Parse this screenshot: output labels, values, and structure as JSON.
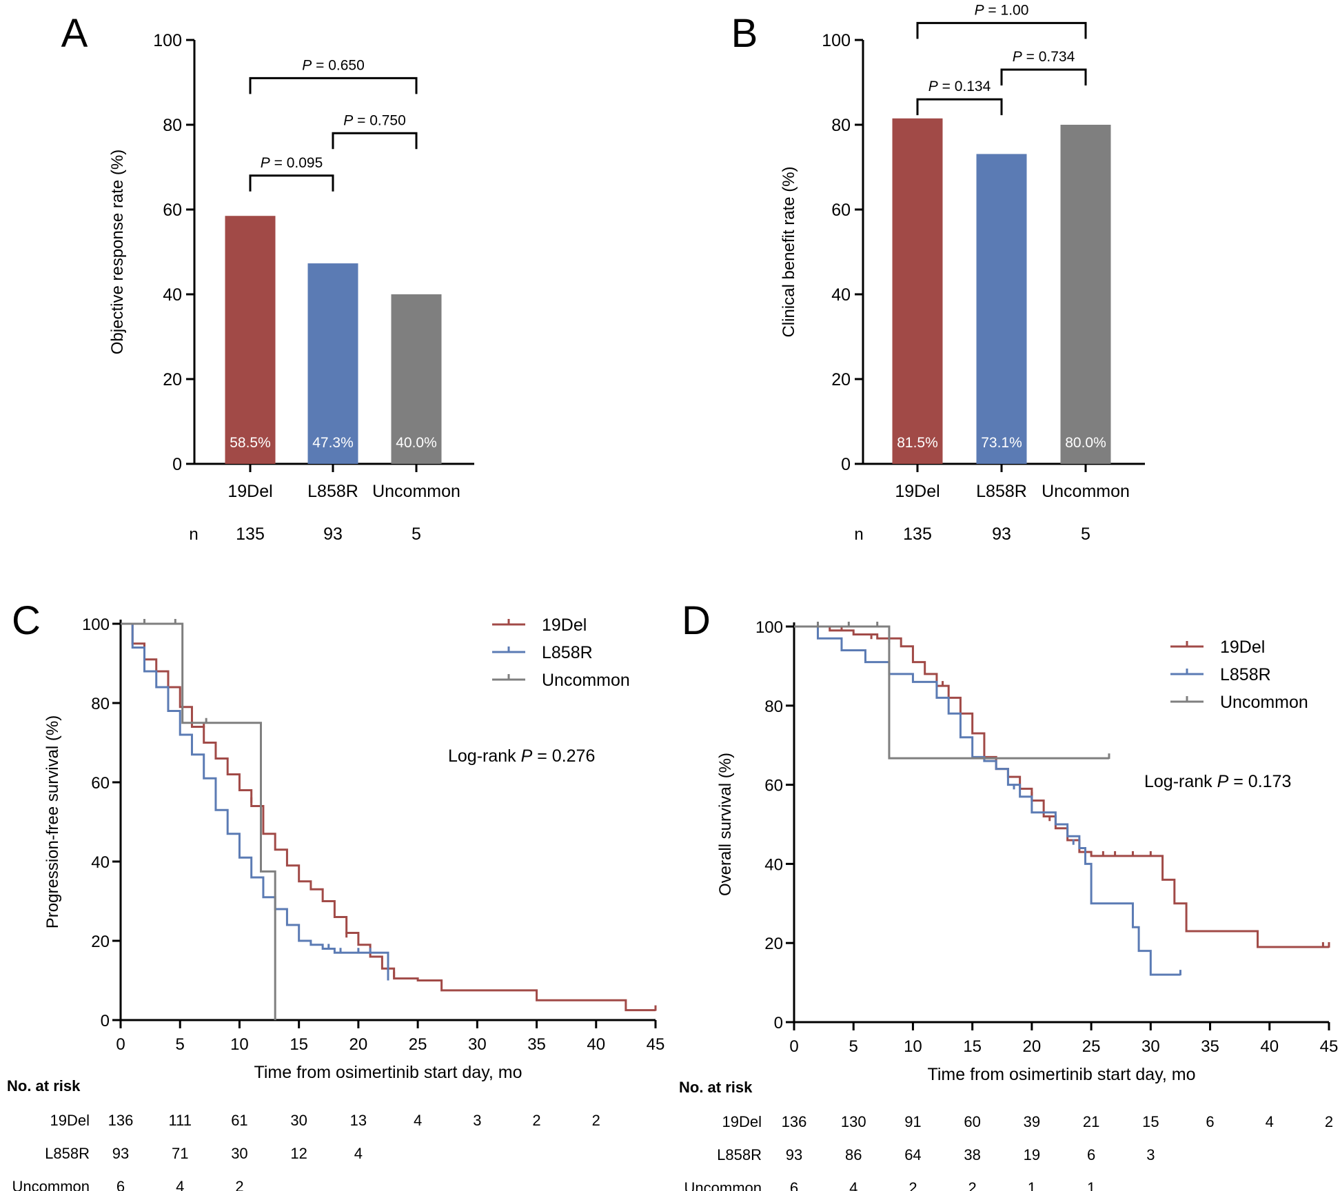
{
  "colors": {
    "19Del": "#A14A47",
    "L858R": "#5B7BB4",
    "Uncommon": "#7F7F7F",
    "axis": "#000000"
  },
  "chart_data": [
    {
      "panel": "A",
      "type": "bar",
      "ylabel": "Objective response rate (%)",
      "ylim": [
        0,
        100
      ],
      "yticks": [
        "0",
        "20",
        "40",
        "60",
        "80",
        "100"
      ],
      "categories": [
        "19Del",
        "L858R",
        "Uncommon"
      ],
      "values": [
        58.5,
        47.3,
        40.0
      ],
      "value_labels": [
        "58.5%",
        "47.3%",
        "40.0%"
      ],
      "n_label": "n",
      "n": [
        "135",
        "93",
        "5"
      ],
      "comparisons": [
        {
          "from": 0,
          "to": 2,
          "y": 91,
          "p_prefix": "P",
          "p_value": " = 0.650"
        },
        {
          "from": 1,
          "to": 2,
          "y": 78,
          "p_prefix": "P",
          "p_value": " = 0.750"
        },
        {
          "from": 0,
          "to": 1,
          "y": 68,
          "p_prefix": "P",
          "p_value": " = 0.095"
        }
      ]
    },
    {
      "panel": "B",
      "type": "bar",
      "ylabel": "Clinical benefit rate (%)",
      "ylim": [
        0,
        100
      ],
      "yticks": [
        "0",
        "20",
        "40",
        "60",
        "80",
        "100"
      ],
      "categories": [
        "19Del",
        "L858R",
        "Uncommon"
      ],
      "values": [
        81.5,
        73.1,
        80.0
      ],
      "value_labels": [
        "81.5%",
        "73.1%",
        "80.0%"
      ],
      "n_label": "n",
      "n": [
        "135",
        "93",
        "5"
      ],
      "comparisons": [
        {
          "from": 0,
          "to": 2,
          "y": 104,
          "p_prefix": "P",
          "p_value": " = 1.00"
        },
        {
          "from": 1,
          "to": 2,
          "y": 93,
          "p_prefix": "P",
          "p_value": " = 0.734"
        },
        {
          "from": 0,
          "to": 1,
          "y": 86,
          "p_prefix": "P",
          "p_value": " = 0.134"
        }
      ]
    },
    {
      "panel": "C",
      "type": "line",
      "ylabel": "Progression-free survival (%)",
      "xlabel": "Time from osimertinib start day, mo",
      "xlim": [
        0,
        45
      ],
      "ylim": [
        0,
        100
      ],
      "xticks": [
        "0",
        "5",
        "10",
        "15",
        "20",
        "25",
        "30",
        "35",
        "40",
        "45"
      ],
      "yticks": [
        "0",
        "20",
        "40",
        "60",
        "80",
        "100"
      ],
      "legend": [
        "19Del",
        "L858R",
        "Uncommon"
      ],
      "annotation": {
        "prefix": "Log-rank ",
        "p": "P",
        "value": " = 0.276"
      },
      "series": [
        {
          "name": "19Del",
          "x": [
            0,
            1,
            2,
            3,
            4,
            5,
            6,
            7,
            8,
            9,
            10,
            11,
            12,
            13,
            14,
            15,
            16,
            17,
            18,
            19,
            20,
            21,
            22,
            23,
            25,
            27,
            35,
            42.5,
            45
          ],
          "y": [
            100,
            95,
            91,
            88,
            84,
            79,
            74,
            70,
            66,
            62,
            58,
            54,
            47,
            43,
            39,
            35,
            33,
            30,
            26,
            22,
            19,
            16,
            13,
            10.5,
            10,
            7.5,
            5,
            2.5,
            2.5
          ],
          "censor_x": [
            7,
            11,
            19,
            22.5,
            23,
            45
          ],
          "censor_y": [
            74,
            55,
            21,
            12,
            11,
            2.5
          ]
        },
        {
          "name": "L858R",
          "x": [
            0,
            1,
            2,
            3,
            4,
            5,
            6,
            7,
            8,
            9,
            10,
            11,
            12,
            13,
            14,
            15,
            16,
            17,
            18,
            19,
            20,
            21,
            22,
            22.5
          ],
          "y": [
            100,
            94,
            88,
            84,
            78,
            72,
            67,
            61,
            53,
            47,
            41,
            36,
            31,
            28,
            24,
            20,
            19,
            18,
            17,
            17,
            17,
            17,
            17,
            10
          ],
          "censor_x": [
            17.5,
            18.5,
            20,
            21
          ],
          "censor_y": [
            18,
            17,
            17,
            17
          ]
        },
        {
          "name": "Uncommon",
          "x": [
            0,
            5.2,
            5.2,
            11.8,
            11.8,
            13,
            13
          ],
          "y": [
            100,
            100,
            75,
            75,
            37.5,
            37.5,
            0
          ],
          "censor_x": [
            2,
            4.6,
            7.2
          ],
          "censor_y": [
            100,
            100,
            75
          ]
        }
      ],
      "risk_table": {
        "title": "No. at risk",
        "x": [
          0,
          5,
          10,
          15,
          20,
          25,
          30,
          35,
          40
        ],
        "rows": [
          {
            "label": "19Del",
            "values": [
              "136",
              "111",
              "61",
              "30",
              "13",
              "4",
              "3",
              "2",
              "2"
            ]
          },
          {
            "label": "L858R",
            "values": [
              "93",
              "71",
              "30",
              "12",
              "4"
            ]
          },
          {
            "label": "Uncommon",
            "values": [
              "6",
              "4",
              "2"
            ]
          }
        ]
      }
    },
    {
      "panel": "D",
      "type": "line",
      "ylabel": "Overall survival (%)",
      "xlabel": "Time from osimertinib start day, mo",
      "xlim": [
        0,
        45
      ],
      "ylim": [
        0,
        100
      ],
      "xticks": [
        "0",
        "5",
        "10",
        "15",
        "20",
        "25",
        "30",
        "35",
        "40",
        "45"
      ],
      "yticks": [
        "0",
        "20",
        "40",
        "60",
        "80",
        "100"
      ],
      "legend": [
        "19Del",
        "L858R",
        "Uncommon"
      ],
      "annotation": {
        "prefix": "Log-rank ",
        "p": "P",
        "value": " = 0.173"
      },
      "series": [
        {
          "name": "19Del",
          "x": [
            0,
            3,
            5,
            7,
            9,
            10,
            11,
            12,
            13,
            14,
            15,
            16,
            17,
            18,
            19,
            20,
            21,
            22,
            23,
            24,
            25,
            30.5,
            31,
            32,
            33,
            39,
            45
          ],
          "y": [
            100,
            99,
            98,
            97,
            95,
            91,
            88,
            85,
            82,
            78,
            73,
            67,
            64,
            62,
            59,
            56,
            52,
            49,
            46,
            43,
            42,
            42,
            36,
            30,
            23,
            19,
            19
          ],
          "censor_x": [
            4,
            6.5,
            8,
            12.5,
            20,
            21.5,
            26,
            27,
            28.5,
            30,
            44.5,
            45
          ],
          "censor_y": [
            99,
            97,
            96,
            85,
            57,
            51,
            42,
            42,
            42,
            42,
            19,
            19
          ]
        },
        {
          "name": "L858R",
          "x": [
            0,
            2,
            4,
            6,
            8,
            10,
            12,
            13,
            14,
            15,
            16,
            17,
            18,
            19,
            20,
            22,
            23,
            24,
            24.5,
            25,
            28,
            28.5,
            29,
            30,
            32.5
          ],
          "y": [
            100,
            97,
            94,
            91,
            88,
            86,
            82,
            78,
            72,
            67,
            66,
            64,
            60,
            57,
            53,
            50,
            47,
            44,
            40,
            30,
            30,
            24,
            18,
            12,
            12
          ],
          "censor_x": [
            16,
            18.5,
            23.5,
            32.5
          ],
          "censor_y": [
            66,
            59,
            45,
            12
          ]
        },
        {
          "name": "Uncommon",
          "x": [
            0,
            8,
            8,
            26.5
          ],
          "y": [
            100,
            100,
            66.7,
            66.7
          ],
          "censor_x": [
            2,
            4.6,
            7,
            26.5
          ],
          "censor_y": [
            100,
            100,
            100,
            66.7
          ]
        }
      ],
      "risk_table": {
        "title": "No. at risk",
        "x": [
          0,
          5,
          10,
          15,
          20,
          25,
          30,
          35,
          40,
          45
        ],
        "rows": [
          {
            "label": "19Del",
            "values": [
              "136",
              "130",
              "91",
              "60",
              "39",
              "21",
              "15",
              "6",
              "4",
              "2"
            ]
          },
          {
            "label": "L858R",
            "values": [
              "93",
              "86",
              "64",
              "38",
              "19",
              "6",
              "3"
            ]
          },
          {
            "label": "Uncommon",
            "values": [
              "6",
              "4",
              "2",
              "2",
              "1",
              "1"
            ]
          }
        ]
      }
    }
  ],
  "panels": [
    "A",
    "B",
    "C",
    "D"
  ]
}
